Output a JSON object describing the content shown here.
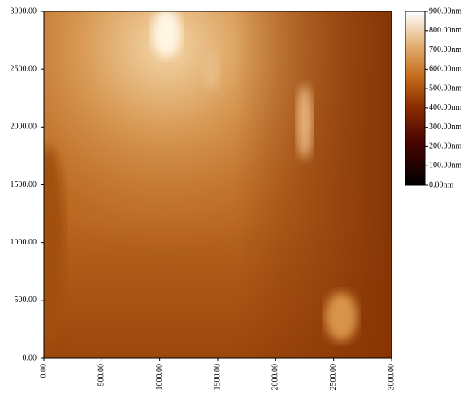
{
  "chart_data": {
    "type": "image",
    "xlim": [
      0,
      3000
    ],
    "ylim": [
      0,
      3000
    ],
    "xticks": [
      {
        "value": 0,
        "label": "0.00"
      },
      {
        "value": 500,
        "label": "500.00"
      },
      {
        "value": 1000,
        "label": "1000.00"
      },
      {
        "value": 1500,
        "label": "1500.00"
      },
      {
        "value": 2000,
        "label": "2000.00"
      },
      {
        "value": 2500,
        "label": "2500.00"
      },
      {
        "value": 3000,
        "label": "3000.00"
      }
    ],
    "yticks": [
      {
        "value": 0,
        "label": "0.00"
      },
      {
        "value": 500,
        "label": "500.00"
      },
      {
        "value": 1000,
        "label": "1000.00"
      },
      {
        "value": 1500,
        "label": "1500.00"
      },
      {
        "value": 2000,
        "label": "2000.00"
      },
      {
        "value": 2500,
        "label": "2500.00"
      },
      {
        "value": 3000,
        "label": "3000.00"
      }
    ],
    "clim": [
      0,
      900
    ],
    "cticks": [
      {
        "value": 0,
        "label": "0.00nm"
      },
      {
        "value": 100,
        "label": "100.00nm"
      },
      {
        "value": 200,
        "label": "200.00nm"
      },
      {
        "value": 300,
        "label": "300.00nm"
      },
      {
        "value": 400,
        "label": "400.00nm"
      },
      {
        "value": 500,
        "label": "500.00nm"
      },
      {
        "value": 600,
        "label": "600.00nm"
      },
      {
        "value": 700,
        "label": "700.00nm"
      },
      {
        "value": 800,
        "label": "800.00nm"
      },
      {
        "value": 900,
        "label": "900.00nm"
      }
    ]
  }
}
